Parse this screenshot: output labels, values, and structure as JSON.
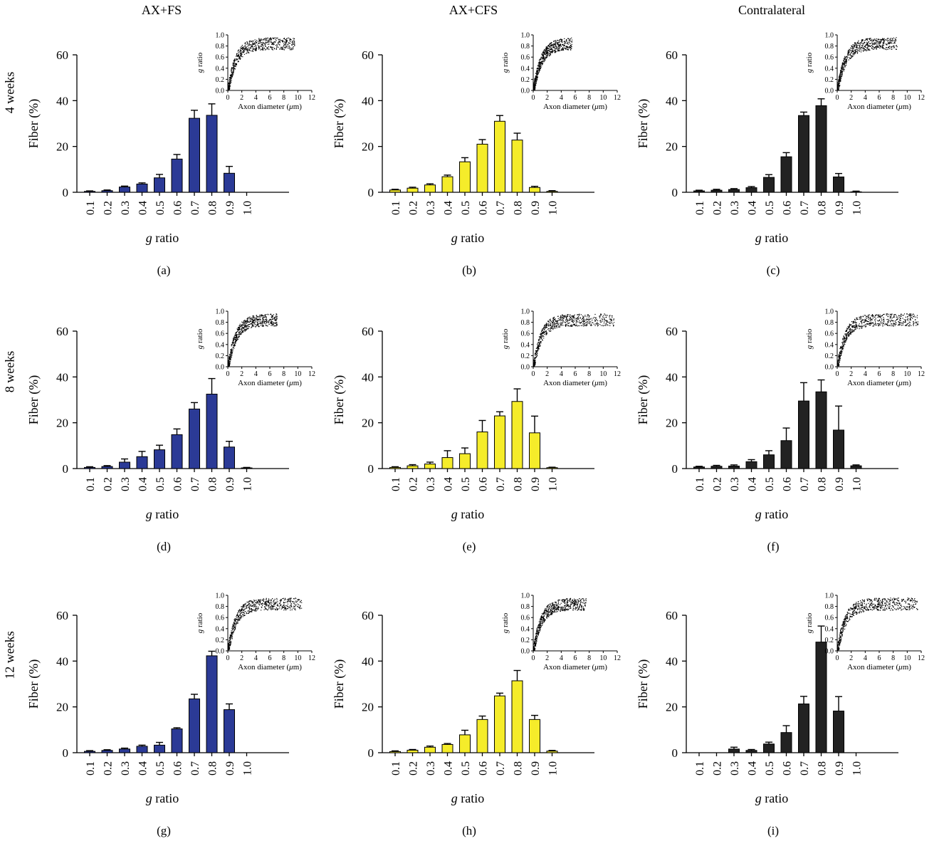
{
  "column_titles": [
    "AX+FS",
    "AX+CFS",
    "Contralateral"
  ],
  "row_titles": [
    "4 weeks",
    "8 weeks",
    "12 weeks"
  ],
  "colors": {
    "AX+FS": "#2b3a96",
    "AX+CFS": "#f5ec2a",
    "Contralateral": "#222222"
  },
  "chart_data": [
    {
      "panel": "(a)",
      "type": "bar",
      "group": "AX+FS",
      "row": "4 weeks",
      "xlabel": "g ratio",
      "ylabel": "Fiber (%)",
      "categories": [
        "0.1",
        "0.2",
        "0.3",
        "0.4",
        "0.5",
        "0.6",
        "0.7",
        "0.8",
        "0.9",
        "1.0"
      ],
      "values": [
        0.4,
        0.7,
        2.3,
        3.6,
        6.3,
        14.5,
        32.3,
        33.6,
        8.3,
        0
      ],
      "errors": [
        0.2,
        0.3,
        0.4,
        0.5,
        1.5,
        2.0,
        3.5,
        5.0,
        3.0,
        0
      ],
      "yticks": [
        0,
        20,
        40,
        60
      ],
      "ylim": [
        0,
        60
      ],
      "inset": {
        "type": "scatter",
        "xlabel": "Axon diameter (μm)",
        "ylabel": "g ratio",
        "xticks": [
          0,
          2,
          4,
          6,
          8,
          10,
          12
        ],
        "yticks": [
          "0.0",
          "0.2",
          "0.4",
          "0.6",
          "0.8",
          "1.0"
        ],
        "xmax_data": 9.5
      }
    },
    {
      "panel": "(b)",
      "type": "bar",
      "group": "AX+CFS",
      "row": "4 weeks",
      "xlabel": "g ratio",
      "ylabel": "Fiber (%)",
      "categories": [
        "0.1",
        "0.2",
        "0.3",
        "0.4",
        "0.5",
        "0.6",
        "0.7",
        "0.8",
        "0.9",
        "1.0"
      ],
      "values": [
        1.0,
        1.8,
        3.2,
        6.8,
        13.3,
        21.0,
        31.0,
        22.8,
        2.1,
        0.4
      ],
      "errors": [
        0.3,
        0.4,
        0.5,
        0.7,
        1.8,
        2.0,
        2.5,
        3.0,
        0.5,
        0.3
      ],
      "yticks": [
        0,
        20,
        40,
        60
      ],
      "ylim": [
        0,
        60
      ],
      "inset": {
        "type": "scatter",
        "xlabel": "Axon diameter (μm)",
        "ylabel": "g ratio",
        "xticks": [
          0,
          2,
          4,
          6,
          8,
          10,
          12
        ],
        "yticks": [
          "0.0",
          "0.2",
          "0.4",
          "0.6",
          "0.8",
          "1.0"
        ],
        "xmax_data": 5.5
      }
    },
    {
      "panel": "(c)",
      "type": "bar",
      "group": "Contralateral",
      "row": "4 weeks",
      "xlabel": "g ratio",
      "ylabel": "Fiber (%)",
      "categories": [
        "0.1",
        "0.2",
        "0.3",
        "0.4",
        "0.5",
        "0.6",
        "0.7",
        "0.8",
        "0.9",
        "1.0"
      ],
      "values": [
        0.6,
        0.9,
        1.2,
        2.0,
        6.5,
        15.5,
        33.5,
        37.8,
        6.7,
        0.2
      ],
      "errors": [
        0.3,
        0.4,
        0.4,
        0.5,
        1.2,
        1.8,
        1.5,
        3.0,
        1.5,
        0.3
      ],
      "yticks": [
        0,
        20,
        40,
        60
      ],
      "ylim": [
        0,
        60
      ],
      "inset": {
        "type": "scatter",
        "xlabel": "Axon diameter (μm)",
        "ylabel": "g ratio",
        "xticks": [
          0,
          2,
          4,
          6,
          8,
          10,
          12
        ],
        "yticks": [
          "0.0",
          "0.2",
          "0.4",
          "0.6",
          "0.8",
          "1.0"
        ],
        "xmax_data": 8.5
      }
    },
    {
      "panel": "(d)",
      "type": "bar",
      "group": "AX+FS",
      "row": "8 weeks",
      "xlabel": "g ratio",
      "ylabel": "Fiber (%)",
      "categories": [
        "0.1",
        "0.2",
        "0.3",
        "0.4",
        "0.5",
        "0.6",
        "0.7",
        "0.8",
        "0.9",
        "1.0"
      ],
      "values": [
        0.5,
        0.9,
        2.8,
        5.2,
        8.2,
        14.8,
        26.0,
        32.5,
        9.4,
        0.3
      ],
      "errors": [
        0.3,
        0.4,
        1.4,
        2.3,
        2.0,
        2.5,
        2.8,
        6.8,
        2.5,
        0.2
      ],
      "yticks": [
        0,
        20,
        40,
        60
      ],
      "ylim": [
        0,
        60
      ],
      "inset": {
        "type": "scatter",
        "xlabel": "Axon diameter (μm)",
        "ylabel": "g ratio",
        "xticks": [
          0,
          2,
          4,
          6,
          8,
          10,
          12
        ],
        "yticks": [
          "0.0",
          "0.2",
          "0.4",
          "0.6",
          "0.8",
          "1.0"
        ],
        "xmax_data": 7.0
      }
    },
    {
      "panel": "(e)",
      "type": "bar",
      "group": "AX+CFS",
      "row": "8 weeks",
      "xlabel": "g ratio",
      "ylabel": "Fiber (%)",
      "categories": [
        "0.1",
        "0.2",
        "0.3",
        "0.4",
        "0.5",
        "0.6",
        "0.7",
        "0.8",
        "0.9",
        "1.0"
      ],
      "values": [
        0.5,
        1.2,
        2.0,
        4.8,
        6.5,
        16.0,
        23.0,
        29.3,
        15.6,
        0.4
      ],
      "errors": [
        0.3,
        0.5,
        0.8,
        3.0,
        2.5,
        5.0,
        1.8,
        5.5,
        7.3,
        0.2
      ],
      "yticks": [
        0,
        20,
        40,
        60
      ],
      "ylim": [
        0,
        60
      ],
      "inset": {
        "type": "scatter",
        "xlabel": "Axon diameter (μm)",
        "ylabel": "g ratio",
        "xticks": [
          0,
          2,
          4,
          6,
          8,
          10,
          12
        ],
        "yticks": [
          "0.0",
          "0.2",
          "0.4",
          "0.6",
          "0.8",
          "1.0"
        ],
        "xmax_data": 11.5
      }
    },
    {
      "panel": "(f)",
      "type": "bar",
      "group": "Contralateral",
      "row": "8 weeks",
      "xlabel": "g ratio",
      "ylabel": "Fiber (%)",
      "categories": [
        "0.1",
        "0.2",
        "0.3",
        "0.4",
        "0.5",
        "0.6",
        "0.7",
        "0.8",
        "0.9",
        "1.0"
      ],
      "values": [
        0.7,
        1.0,
        1.1,
        3.0,
        6.0,
        12.2,
        29.5,
        33.5,
        16.8,
        1.2
      ],
      "errors": [
        0.3,
        0.4,
        0.5,
        0.9,
        1.8,
        5.5,
        8.0,
        5.2,
        10.5,
        0.4
      ],
      "yticks": [
        0,
        20,
        40,
        60
      ],
      "ylim": [
        0,
        60
      ],
      "inset": {
        "type": "scatter",
        "xlabel": "Axon diameter (μm)",
        "ylabel": "g ratio",
        "xticks": [
          0,
          2,
          4,
          6,
          8,
          10,
          12
        ],
        "yticks": [
          "0.0",
          "0.2",
          "0.4",
          "0.6",
          "0.8",
          "1.0"
        ],
        "xmax_data": 11.5
      }
    },
    {
      "panel": "(g)",
      "type": "bar",
      "group": "AX+FS",
      "row": "12 weeks",
      "xlabel": "g ratio",
      "ylabel": "Fiber (%)",
      "categories": [
        "0.1",
        "0.2",
        "0.3",
        "0.4",
        "0.5",
        "0.6",
        "0.7",
        "0.8",
        "0.9",
        "1.0"
      ],
      "values": [
        0.6,
        1.0,
        1.6,
        2.8,
        3.3,
        10.4,
        23.5,
        42.3,
        18.8,
        0
      ],
      "errors": [
        0.3,
        0.3,
        0.4,
        0.5,
        1.2,
        0.5,
        2.0,
        2.0,
        2.5,
        0
      ],
      "yticks": [
        0,
        20,
        40,
        60
      ],
      "ylim": [
        0,
        60
      ],
      "inset": {
        "type": "scatter",
        "xlabel": "Axon diameter (μm)",
        "ylabel": "g ratio",
        "xticks": [
          0,
          2,
          4,
          6,
          8,
          10,
          12
        ],
        "yticks": [
          "0.0",
          "0.2",
          "0.4",
          "0.6",
          "0.8",
          "1.0"
        ],
        "xmax_data": 10.5
      }
    },
    {
      "panel": "(h)",
      "type": "bar",
      "group": "AX+CFS",
      "row": "12 weeks",
      "xlabel": "g ratio",
      "ylabel": "Fiber (%)",
      "categories": [
        "0.1",
        "0.2",
        "0.3",
        "0.4",
        "0.5",
        "0.6",
        "0.7",
        "0.8",
        "0.9",
        "1.0"
      ],
      "values": [
        0.5,
        1.1,
        2.4,
        3.6,
        7.8,
        14.5,
        24.8,
        31.4,
        14.5,
        0.7
      ],
      "errors": [
        0.3,
        0.3,
        0.5,
        0.4,
        2.0,
        1.5,
        1.2,
        4.5,
        1.8,
        0.3
      ],
      "yticks": [
        0,
        20,
        40,
        60
      ],
      "ylim": [
        0,
        60
      ],
      "inset": {
        "type": "scatter",
        "xlabel": "Axon diameter (μm)",
        "ylabel": "g ratio",
        "xticks": [
          0,
          2,
          4,
          6,
          8,
          10,
          12
        ],
        "yticks": [
          "0.0",
          "0.2",
          "0.4",
          "0.6",
          "0.8",
          "1.0"
        ],
        "xmax_data": 7.5
      }
    },
    {
      "panel": "(i)",
      "type": "bar",
      "group": "Contralateral",
      "row": "12 weeks",
      "xlabel": "g ratio",
      "ylabel": "Fiber (%)",
      "categories": [
        "0.1",
        "0.2",
        "0.3",
        "0.4",
        "0.5",
        "0.6",
        "0.7",
        "0.8",
        "0.9",
        "1.0"
      ],
      "values": [
        0,
        0,
        1.6,
        1.0,
        3.8,
        8.8,
        21.3,
        48.3,
        18.2,
        0
      ],
      "errors": [
        0,
        0,
        0.8,
        0.4,
        0.8,
        3.0,
        3.3,
        7.0,
        6.3,
        0
      ],
      "yticks": [
        0,
        20,
        40,
        60
      ],
      "ylim": [
        0,
        60
      ],
      "inset": {
        "type": "scatter",
        "xlabel": "Axon diameter (μm)",
        "ylabel": "g ratio",
        "xticks": [
          0,
          2,
          4,
          6,
          8,
          10,
          12
        ],
        "yticks": [
          "0.0",
          "0.2",
          "0.4",
          "0.6",
          "0.8",
          "1.0"
        ],
        "xmax_data": 11.5
      }
    }
  ]
}
